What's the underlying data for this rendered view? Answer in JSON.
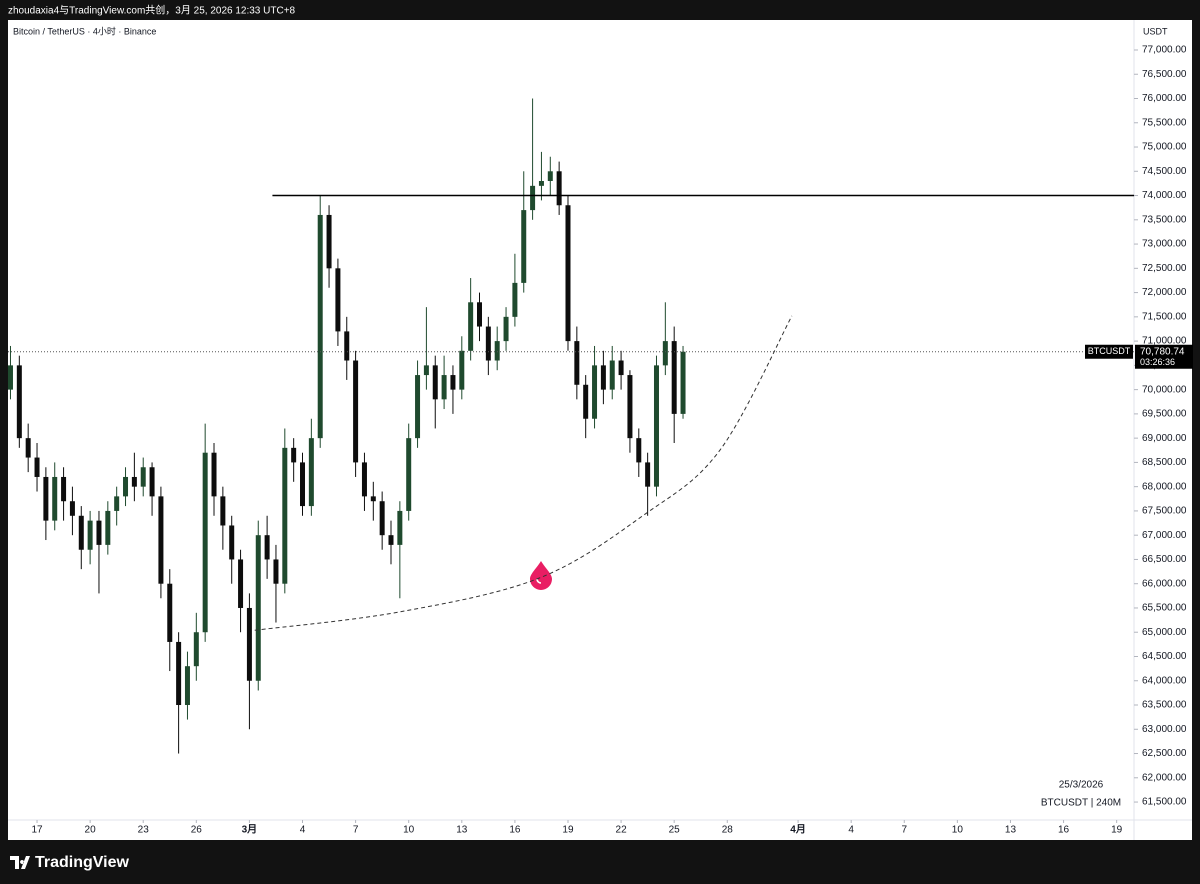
{
  "header": "zhoudaxia4与TradingView.com共创，3月 25, 2026 12:33 UTC+8",
  "footer_brand": "TradingView",
  "chart_data": {
    "type": "candlestick",
    "title": "Bitcoin / TetherUS · 4小时 · Binance",
    "y_axis_unit": "USDT",
    "date_label": "25/3/2026",
    "interval_label": "BTCUSDT | 240M",
    "up_color": "#1f4a2e",
    "down_color": "#0d0d0d",
    "xlim": [
      -1.64,
      61.98
    ],
    "ylim": [
      61130,
      77618
    ],
    "xticks": [
      {
        "value": 0,
        "label": "17"
      },
      {
        "value": 3,
        "label": "20"
      },
      {
        "value": 6,
        "label": "23"
      },
      {
        "value": 9,
        "label": "26"
      },
      {
        "value": 12,
        "label": "3月"
      },
      {
        "value": 15,
        "label": "4"
      },
      {
        "value": 18,
        "label": "7"
      },
      {
        "value": 21,
        "label": "10"
      },
      {
        "value": 24,
        "label": "13"
      },
      {
        "value": 27,
        "label": "16"
      },
      {
        "value": 30,
        "label": "19"
      },
      {
        "value": 33,
        "label": "22"
      },
      {
        "value": 36,
        "label": "25"
      },
      {
        "value": 39,
        "label": "28"
      },
      {
        "value": 43,
        "label": "4月"
      },
      {
        "value": 46,
        "label": "4"
      },
      {
        "value": 49,
        "label": "7"
      },
      {
        "value": 52,
        "label": "10"
      },
      {
        "value": 55,
        "label": "13"
      },
      {
        "value": 58,
        "label": "16"
      },
      {
        "value": 61,
        "label": "19"
      }
    ],
    "yticks": [
      {
        "value": 61500,
        "label": "61,500.00"
      },
      {
        "value": 62000,
        "label": "62,000.00"
      },
      {
        "value": 62500,
        "label": "62,500.00"
      },
      {
        "value": 63000,
        "label": "63,000.00"
      },
      {
        "value": 63500,
        "label": "63,500.00"
      },
      {
        "value": 64000,
        "label": "64,000.00"
      },
      {
        "value": 64500,
        "label": "64,500.00"
      },
      {
        "value": 65000,
        "label": "65,000.00"
      },
      {
        "value": 65500,
        "label": "65,500.00"
      },
      {
        "value": 66000,
        "label": "66,000.00"
      },
      {
        "value": 66500,
        "label": "66,500.00"
      },
      {
        "value": 67000,
        "label": "67,000.00"
      },
      {
        "value": 67500,
        "label": "67,500.00"
      },
      {
        "value": 68000,
        "label": "68,000.00"
      },
      {
        "value": 68500,
        "label": "68,500.00"
      },
      {
        "value": 69000,
        "label": "69,000.00"
      },
      {
        "value": 69500,
        "label": "69,500.00"
      },
      {
        "value": 70000,
        "label": "70,000.00"
      },
      {
        "value": 70500,
        "label": "70,500.00"
      },
      {
        "value": 71000,
        "label": "71,000.00"
      },
      {
        "value": 71500,
        "label": "71,500.00"
      },
      {
        "value": 72000,
        "label": "72,000.00"
      },
      {
        "value": 72500,
        "label": "72,500.00"
      },
      {
        "value": 73000,
        "label": "73,000.00"
      },
      {
        "value": 73500,
        "label": "73,500.00"
      },
      {
        "value": 74000,
        "label": "74,000.00"
      },
      {
        "value": 74500,
        "label": "74,500.00"
      },
      {
        "value": 75000,
        "label": "75,000.00"
      },
      {
        "value": 75500,
        "label": "75,500.00"
      },
      {
        "value": 76000,
        "label": "76,000.00"
      },
      {
        "value": 76500,
        "label": "76,500.00"
      },
      {
        "value": 77000,
        "label": "77,000.00"
      }
    ],
    "x": [
      -1.5,
      -1,
      -0.5,
      0,
      0.5,
      1,
      1.5,
      2,
      2.5,
      3,
      3.5,
      4,
      4.5,
      5,
      5.5,
      6,
      6.5,
      7,
      7.5,
      8,
      8.5,
      9,
      9.5,
      10,
      10.5,
      11,
      11.5,
      12,
      12.5,
      13,
      13.5,
      14,
      14.5,
      15,
      15.5,
      16,
      16.5,
      17,
      17.5,
      18,
      18.5,
      19,
      19.5,
      20,
      20.5,
      21,
      21.5,
      22,
      22.5,
      23,
      23.5,
      24,
      24.5,
      25,
      25.5,
      26,
      26.5,
      27,
      27.5,
      28,
      28.5,
      29,
      29.5,
      30,
      30.5,
      31,
      31.5,
      32,
      32.5,
      33,
      33.5,
      34,
      34.5,
      35,
      35.5,
      36,
      36.5
    ],
    "open": [
      70000,
      70500,
      69000,
      68600,
      68200,
      67300,
      68200,
      67700,
      67400,
      66700,
      67300,
      66800,
      67500,
      67800,
      68200,
      68000,
      68400,
      67800,
      66000,
      64800,
      63500,
      64300,
      65000,
      68700,
      67800,
      67200,
      66500,
      65500,
      64000,
      67000,
      66500,
      66000,
      68800,
      68500,
      67600,
      69000,
      73600,
      72500,
      71200,
      70600,
      68500,
      67800,
      67700,
      67000,
      66800,
      67500,
      69000,
      70300,
      70500,
      69800,
      70300,
      70000,
      70800,
      71800,
      71300,
      70600,
      71000,
      71500,
      72200,
      73700,
      74200,
      74300,
      74500,
      73800,
      71000,
      70100,
      69400,
      70500,
      70000,
      70600,
      70300,
      69000,
      68500,
      68000,
      70500,
      71000,
      69500
    ],
    "high": [
      70900,
      70700,
      69300,
      68900,
      68400,
      68500,
      68400,
      68000,
      67600,
      67500,
      67500,
      67700,
      68000,
      68400,
      68700,
      68600,
      68500,
      68000,
      66300,
      65000,
      64600,
      65400,
      69300,
      68900,
      68000,
      67400,
      66700,
      65800,
      67300,
      67400,
      66800,
      69200,
      69000,
      68700,
      69400,
      74000,
      73800,
      72700,
      71500,
      70800,
      68700,
      68100,
      67900,
      67300,
      67700,
      69300,
      70600,
      71700,
      70700,
      70700,
      70500,
      71100,
      72300,
      72000,
      71500,
      71300,
      71700,
      72800,
      74500,
      76000,
      74900,
      74800,
      74700,
      74000,
      71300,
      70300,
      70900,
      70800,
      70900,
      70800,
      70400,
      69200,
      68700,
      70700,
      71800,
      71300,
      70900
    ],
    "low": [
      69800,
      68800,
      68300,
      67900,
      66900,
      67100,
      67300,
      67000,
      66300,
      66400,
      65800,
      66600,
      67200,
      67600,
      67700,
      67800,
      67400,
      65700,
      64200,
      62500,
      63200,
      64000,
      64800,
      67400,
      66700,
      66000,
      65000,
      63000,
      63800,
      66100,
      65200,
      65800,
      68100,
      67400,
      67400,
      68800,
      72100,
      70900,
      70200,
      68200,
      67500,
      67300,
      66700,
      66400,
      65700,
      67300,
      68800,
      70000,
      69200,
      69600,
      69500,
      69800,
      70600,
      71000,
      70300,
      70400,
      70800,
      71300,
      72000,
      73500,
      73900,
      74000,
      73600,
      70800,
      69800,
      69000,
      69200,
      69700,
      69800,
      70000,
      68700,
      68200,
      67400,
      67800,
      70300,
      68900,
      69400
    ],
    "close": [
      70500,
      69000,
      68600,
      68200,
      67300,
      68200,
      67700,
      67400,
      66700,
      67300,
      66800,
      67500,
      67800,
      68200,
      68000,
      68400,
      67800,
      66000,
      64800,
      63500,
      64300,
      65000,
      68700,
      67800,
      67200,
      66500,
      65500,
      64000,
      67000,
      66500,
      66000,
      68800,
      68500,
      67600,
      69000,
      73600,
      72500,
      71200,
      70600,
      68500,
      67800,
      67700,
      67000,
      66800,
      67500,
      69000,
      70300,
      70500,
      69800,
      70300,
      70000,
      70800,
      71800,
      71300,
      70600,
      71000,
      71500,
      72200,
      73700,
      74200,
      74300,
      74500,
      73800,
      71000,
      70100,
      69400,
      70500,
      70000,
      70600,
      70300,
      69000,
      68500,
      68000,
      70500,
      71000,
      69500,
      70780.74
    ],
    "resistance_line": {
      "y": 74000,
      "x_start": 13.3
    },
    "support_curve": {
      "x": [
        12.3,
        20.5,
        28.4,
        34.3,
        38.6,
        42.65
      ],
      "y": [
        65040,
        65420,
        66120,
        67420,
        68760,
        71520
      ]
    },
    "last_price": {
      "value": 70780.74,
      "label": "70,780.74",
      "countdown": "03:26:36",
      "symbol_tag": "BTCUSDT"
    }
  }
}
